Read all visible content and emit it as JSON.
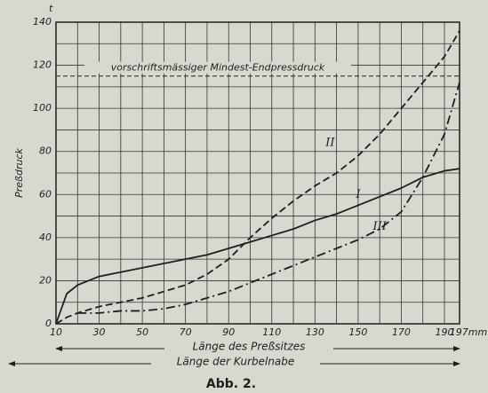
{
  "chart_data": {
    "type": "line",
    "unit": "t",
    "y_label": "Preßdruck",
    "x_label": "Länge des Preßsitzes",
    "x_label_2": "Länge der Kurbelnabe",
    "caption": "Abb. 2.",
    "reference_line": {
      "value": 115,
      "label": "vorschriftsmässiger Mindest-Endpressdruck"
    },
    "x": [
      10,
      15,
      20,
      30,
      40,
      50,
      60,
      70,
      80,
      90,
      100,
      110,
      120,
      130,
      140,
      150,
      160,
      170,
      180,
      190,
      197
    ],
    "series": [
      {
        "name": "I",
        "style": "solid",
        "color": "#1e1e1e",
        "values": [
          0,
          14,
          18,
          22,
          24,
          26,
          28,
          30,
          32,
          35,
          38,
          41,
          44,
          48,
          51,
          55,
          59,
          63,
          68,
          71,
          72
        ]
      },
      {
        "name": "II",
        "style": "dashed",
        "color": "#1e1e1e",
        "values": [
          0,
          3,
          5,
          8,
          10,
          12,
          15,
          18,
          23,
          30,
          40,
          49,
          57,
          64,
          70,
          78,
          88,
          100,
          112,
          124,
          136
        ]
      },
      {
        "name": "III",
        "style": "dashdot",
        "color": "#1e1e1e",
        "values": [
          null,
          null,
          5,
          5,
          6,
          6,
          7,
          9,
          12,
          15,
          19,
          23,
          27,
          31,
          35,
          39,
          44,
          52,
          68,
          88,
          112
        ]
      }
    ],
    "xlim": [
      10,
      197
    ],
    "ylim": [
      0,
      140
    ],
    "xticks": [
      10,
      30,
      50,
      70,
      90,
      110,
      130,
      150,
      170,
      190,
      {
        "value": 197,
        "label": "197mm"
      }
    ],
    "yticks": [
      0,
      20,
      40,
      60,
      80,
      100,
      120,
      140
    ],
    "xgrid": [
      10,
      20,
      30,
      40,
      50,
      60,
      70,
      80,
      90,
      100,
      110,
      120,
      130,
      140,
      150,
      160,
      170,
      180,
      190,
      197
    ],
    "ygrid": [
      0,
      10,
      20,
      30,
      40,
      50,
      60,
      70,
      80,
      90,
      100,
      110,
      120,
      130,
      140
    ],
    "grid": true
  }
}
